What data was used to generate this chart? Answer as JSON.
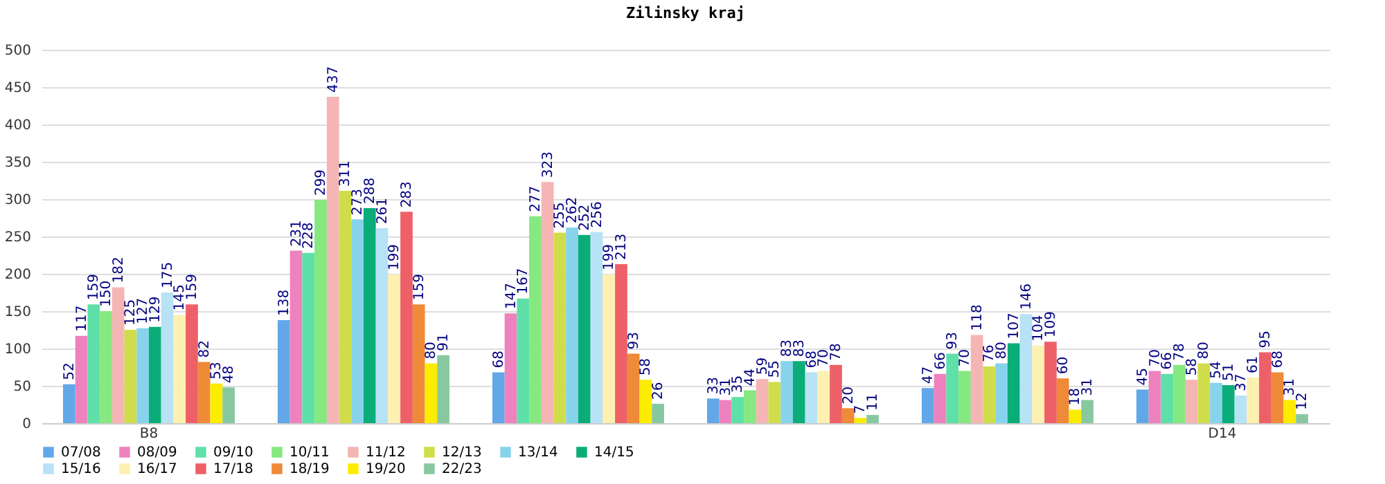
{
  "chart_data": {
    "type": "bar",
    "title": "Zilinsky kraj",
    "categories": [
      "B8",
      null,
      null,
      null,
      null,
      "D14"
    ],
    "ylim": [
      0,
      500
    ],
    "yticks": [
      0,
      50,
      100,
      150,
      200,
      250,
      300,
      350,
      400,
      450,
      500
    ],
    "grid": "y",
    "legend": "bottom",
    "data_labels": true,
    "series": [
      {
        "name": "07/08",
        "color": "#62a8e8",
        "values": [
          52,
          138,
          68,
          33,
          47,
          45
        ]
      },
      {
        "name": "08/09",
        "color": "#ee82be",
        "values": [
          117,
          231,
          147,
          31,
          66,
          70
        ]
      },
      {
        "name": "09/10",
        "color": "#5fe0a8",
        "values": [
          159,
          228,
          167,
          35,
          93,
          66
        ]
      },
      {
        "name": "10/11",
        "color": "#85e880",
        "values": [
          150,
          299,
          277,
          44,
          70,
          78
        ]
      },
      {
        "name": "11/12",
        "color": "#f5b5b5",
        "values": [
          182,
          437,
          323,
          59,
          118,
          58
        ]
      },
      {
        "name": "12/13",
        "color": "#d0dd4a",
        "values": [
          125,
          311,
          255,
          55,
          76,
          80
        ]
      },
      {
        "name": "13/14",
        "color": "#87d3ec",
        "values": [
          127,
          273,
          262,
          83,
          80,
          54
        ]
      },
      {
        "name": "14/15",
        "color": "#0aad78",
        "values": [
          129,
          288,
          252,
          83,
          107,
          51
        ]
      },
      {
        "name": "15/16",
        "color": "#b8e2f5",
        "values": [
          175,
          261,
          256,
          68,
          146,
          37
        ]
      },
      {
        "name": "16/17",
        "color": "#fdf0b0",
        "values": [
          145,
          199,
          199,
          70,
          104,
          61
        ]
      },
      {
        "name": "17/18",
        "color": "#ee6068",
        "values": [
          159,
          283,
          213,
          78,
          109,
          95
        ]
      },
      {
        "name": "18/19",
        "color": "#ee8a38",
        "values": [
          82,
          159,
          93,
          20,
          60,
          68
        ]
      },
      {
        "name": "19/20",
        "color": "#fcec00",
        "values": [
          53,
          80,
          58,
          7,
          18,
          31
        ]
      },
      {
        "name": "22/23",
        "color": "#88c8a0",
        "values": [
          48,
          91,
          26,
          11,
          31,
          12
        ]
      }
    ]
  }
}
